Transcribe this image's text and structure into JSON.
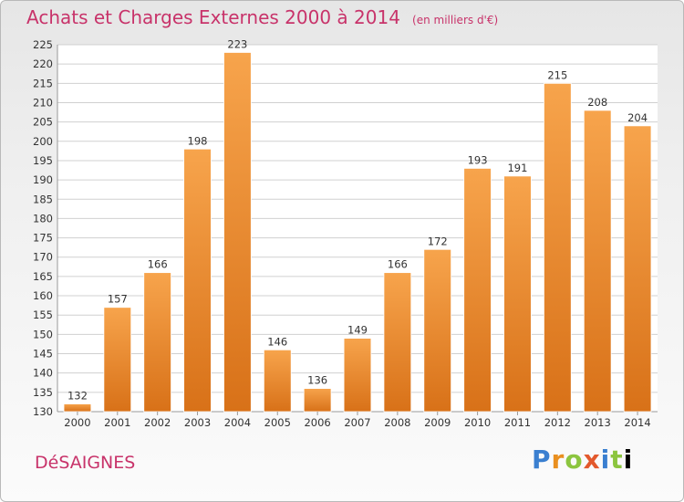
{
  "header": {
    "title": "Achats et Charges Externes 2000 à 2014",
    "subtitle": "(en milliers d'€)"
  },
  "footer": {
    "place": "DéSAIGNES",
    "logo_letters": [
      "P",
      "r",
      "o",
      "x",
      "i",
      "t",
      "i"
    ]
  },
  "colors": {
    "bar_light": "#f7a44c",
    "bar_dark": "#d87118",
    "grid": "#d0d0d0",
    "title": "#c8336a"
  },
  "chart_data": {
    "type": "bar",
    "title": "Achats et Charges Externes 2000 à 2014",
    "subtitle": "(en milliers d'€)",
    "xlabel": "",
    "ylabel": "",
    "categories": [
      "2000",
      "2001",
      "2002",
      "2003",
      "2004",
      "2005",
      "2006",
      "2007",
      "2008",
      "2009",
      "2010",
      "2011",
      "2012",
      "2013",
      "2014"
    ],
    "values": [
      132,
      157,
      166,
      198,
      223,
      146,
      136,
      149,
      166,
      172,
      193,
      191,
      215,
      208,
      204
    ],
    "ylim": [
      130,
      225
    ],
    "yticks": [
      "130",
      "135",
      "140",
      "145",
      "150",
      "155",
      "160",
      "165",
      "170",
      "175",
      "180",
      "185",
      "190",
      "195",
      "200",
      "205",
      "210",
      "215",
      "220",
      "225"
    ],
    "grid": true,
    "legend": "none"
  }
}
